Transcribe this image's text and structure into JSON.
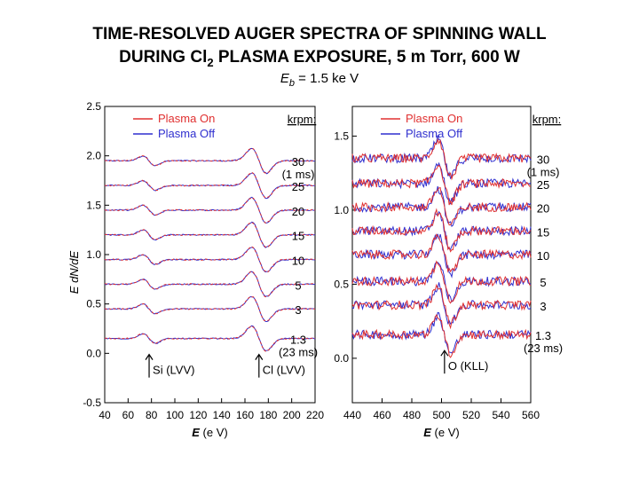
{
  "title": {
    "line1": "TIME-RESOLVED AUGER SPECTRA OF SPINNING WALL",
    "line2_pre": "DURING Cl",
    "line2_sub": "2",
    "line2_post": " PLASMA EXPOSURE, 5 m Torr, 600 W",
    "line3_var": "E",
    "line3_sub": "b",
    "line3_post": " = 1.5 ke V"
  },
  "colors": {
    "plasma_on": "#e03030",
    "plasma_off": "#2f2fcf",
    "axis": "#000000"
  },
  "chart_data": [
    {
      "type": "line",
      "panel": "left",
      "xlabel_var": "E",
      "xlabel_unit": " (e V)",
      "ylabel": "E dN/dE",
      "xlim": [
        40,
        220
      ],
      "ylim": [
        -0.5,
        2.5
      ],
      "xticks": [
        "40",
        "60",
        "80",
        "100",
        "120",
        "140",
        "160",
        "180",
        "200",
        "220"
      ],
      "yticks": [
        "-0.5",
        "0.0",
        "0.5",
        "1.0",
        "1.5",
        "2.0",
        "2.5"
      ],
      "legend": [
        "Plasma On",
        "Plasma Off"
      ],
      "krpm_header": "krpm:",
      "series_labels": [
        "30",
        "25",
        "20",
        "15",
        "10",
        "5",
        "3",
        "1.3"
      ],
      "series_sublabels": {
        "first": "(1 ms)",
        "last": "(23 ms)"
      },
      "offsets": [
        1.95,
        1.7,
        1.45,
        1.2,
        0.95,
        0.7,
        0.45,
        0.15
      ],
      "peaks": [
        {
          "label": "Si (LVV)",
          "x": 78
        },
        {
          "label": "Cl (LVV)",
          "x": 172
        }
      ]
    },
    {
      "type": "line",
      "panel": "right",
      "xlabel_var": "E",
      "xlabel_unit": " (e V)",
      "xlim": [
        440,
        560
      ],
      "ylim": [
        -0.3,
        1.7
      ],
      "xticks": [
        "440",
        "460",
        "480",
        "500",
        "520",
        "540",
        "560"
      ],
      "yticks": [
        "0.0",
        "0.5",
        "1.0",
        "1.5"
      ],
      "legend": [
        "Plasma On",
        "Plasma Off"
      ],
      "krpm_header": "krpm:",
      "series_labels": [
        "30",
        "25",
        "20",
        "15",
        "10",
        "5",
        "3",
        "1.3"
      ],
      "series_sublabels": {
        "first": "(1 ms)",
        "last": "(23 ms)"
      },
      "offsets": [
        1.35,
        1.18,
        1.02,
        0.86,
        0.7,
        0.52,
        0.36,
        0.16
      ],
      "peaks": [
        {
          "label": "O (KLL)",
          "x": 502
        }
      ]
    }
  ]
}
